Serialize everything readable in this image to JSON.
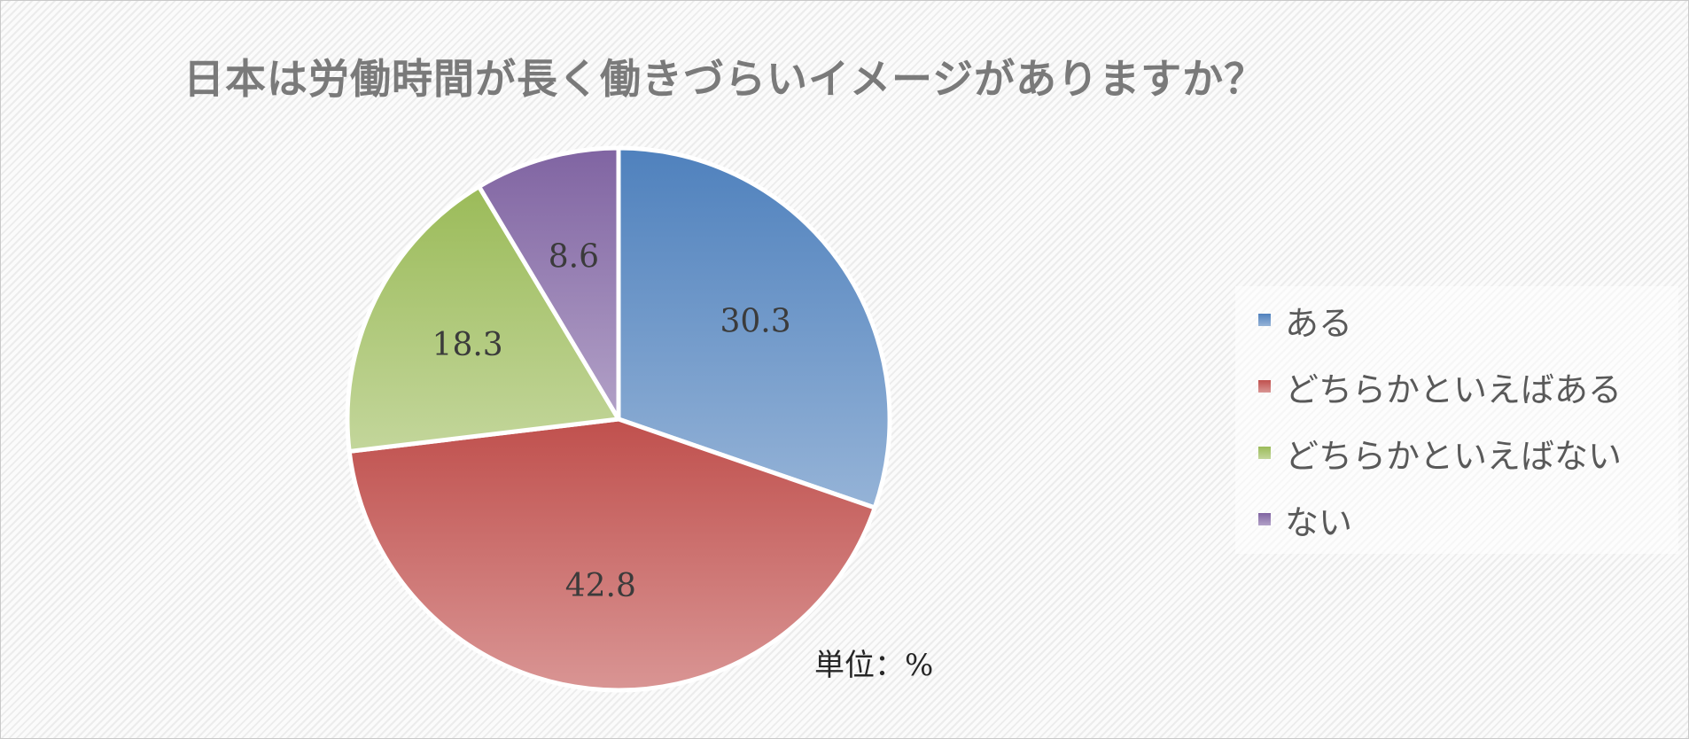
{
  "chart_data": {
    "type": "pie",
    "title": "日本は労働時間が長く働きづらいイメージがありますか？",
    "unit_note": "単位：%",
    "legend_position": "right",
    "slices": [
      {
        "label": "ある",
        "value": 30.3,
        "value_label": "30.3",
        "color_top": "#4f81bd",
        "color_bottom": "#95b3d7"
      },
      {
        "label": "どちらかといえばある",
        "value": 42.8,
        "value_label": "42.8",
        "color_top": "#c0504d",
        "color_bottom": "#d99594"
      },
      {
        "label": "どちらかといえばない",
        "value": 18.3,
        "value_label": "18.3",
        "color_top": "#9bbb59",
        "color_bottom": "#c3d69b"
      },
      {
        "label": "ない",
        "value": 8.6,
        "value_label": "8.6",
        "color_top": "#8064a2",
        "color_bottom": "#b2a1c7"
      }
    ]
  }
}
